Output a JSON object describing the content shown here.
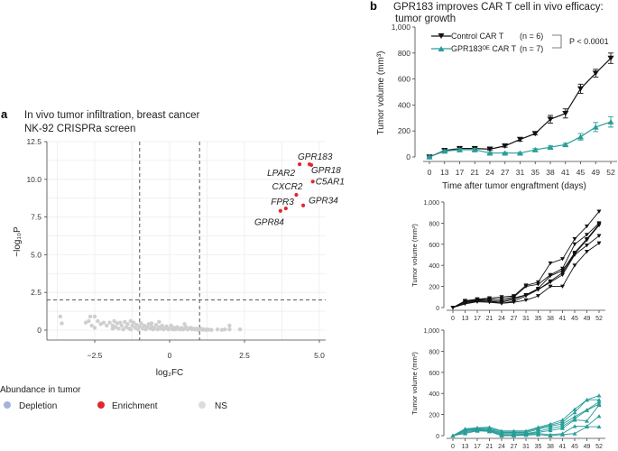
{
  "panels": {
    "a": {
      "label": "a",
      "title": "In vivo tumor infiltration, breast cancer",
      "subtitle": "NK-92 CRISPRa screen"
    },
    "b": {
      "label": "b",
      "title": "GPR183 improves CAR T cell in vivo efficacy:",
      "title2": "tumor growth"
    }
  },
  "colors": {
    "control": "#111111",
    "gpr183": "#2a9d98",
    "depletion": "#a3b3da",
    "enrichment": "#e3262c",
    "ns": "#cfcfcf"
  },
  "chart_data": [
    {
      "type": "scatter",
      "title": "",
      "xlabel": "log₂FC",
      "ylabel": "−log₁₀P",
      "xlim": [
        -4.1,
        5.2
      ],
      "ylim": [
        -0.6,
        12.5
      ],
      "xticks": [
        -2.5,
        0,
        2.5,
        5.0
      ],
      "xtick_labels": [
        "−2.5",
        "0",
        "2.5",
        "5.0"
      ],
      "yticks": [
        0,
        2.5,
        5.0,
        7.5,
        10.0,
        12.5
      ],
      "ytick_labels": [
        "0",
        "2.5",
        "5.0",
        "7.5",
        "10.0",
        "12.5"
      ],
      "grid": true,
      "thresholds": {
        "log2fc": [
          -1,
          1
        ],
        "neg_log10p": 2
      },
      "legend": {
        "title": "Abundance in tumor",
        "position": "bottom",
        "entries": [
          {
            "label": "Depletion",
            "color": "#a3b3da"
          },
          {
            "label": "Enrichment",
            "color": "#e3262c"
          },
          {
            "label": "NS",
            "color": "#cfcfcf"
          }
        ]
      },
      "enriched": [
        {
          "gene": "GPR183",
          "x": 4.67,
          "y": 11.0
        },
        {
          "gene": "GPR18",
          "x": 4.73,
          "y": 10.95
        },
        {
          "gene": "LPAR2",
          "x": 4.34,
          "y": 11.0
        },
        {
          "gene": "C5AR1",
          "x": 4.78,
          "y": 9.85
        },
        {
          "gene": "CXCR2",
          "x": 4.23,
          "y": 8.97
        },
        {
          "gene": "GPR34",
          "x": 4.46,
          "y": 8.27
        },
        {
          "gene": "FPR3",
          "x": 3.88,
          "y": 8.07
        },
        {
          "gene": "GPR84",
          "x": 3.7,
          "y": 7.91
        }
      ],
      "ns_points": [
        [
          -3.65,
          0.9
        ],
        [
          -3.6,
          0.45
        ],
        [
          -2.65,
          0.9
        ],
        [
          -2.5,
          0.9
        ],
        [
          -2.8,
          0.5
        ],
        [
          -2.7,
          0.6
        ],
        [
          -2.6,
          0.3
        ],
        [
          -2.4,
          0.6
        ],
        [
          -2.3,
          0.4
        ],
        [
          -2.2,
          0.5
        ],
        [
          -2.1,
          0.3
        ],
        [
          -2.0,
          0.5
        ],
        [
          -1.9,
          0.3
        ],
        [
          -1.85,
          0.6
        ],
        [
          -1.8,
          0.2
        ],
        [
          -1.75,
          0.45
        ],
        [
          -1.7,
          0.1
        ],
        [
          -1.65,
          0.5
        ],
        [
          -1.6,
          0.3
        ],
        [
          -1.55,
          0.05
        ],
        [
          -1.5,
          0.55
        ],
        [
          -1.45,
          0.2
        ],
        [
          -1.4,
          0.4
        ],
        [
          -1.35,
          0.1
        ],
        [
          -1.3,
          0.6
        ],
        [
          -1.25,
          0.3
        ],
        [
          -1.2,
          0.5
        ],
        [
          -1.15,
          0.15
        ],
        [
          -1.1,
          0.35
        ],
        [
          -1.05,
          0.05
        ],
        [
          -1.0,
          0.25
        ],
        [
          -0.95,
          0.45
        ],
        [
          -0.9,
          0.1
        ],
        [
          -0.85,
          0.3
        ],
        [
          -0.8,
          0.05
        ],
        [
          -0.75,
          0.2
        ],
        [
          -0.7,
          0.4
        ],
        [
          -0.65,
          0.1
        ],
        [
          -0.6,
          0.25
        ],
        [
          -0.55,
          0.05
        ],
        [
          -0.5,
          0.15
        ],
        [
          -0.45,
          0.35
        ],
        [
          -0.4,
          0.05
        ],
        [
          -0.35,
          0.2
        ],
        [
          -0.3,
          0.1
        ],
        [
          -0.25,
          0.3
        ],
        [
          -0.2,
          0.05
        ],
        [
          -0.15,
          0.15
        ],
        [
          -0.1,
          0.25
        ],
        [
          -0.05,
          0.05
        ],
        [
          0.0,
          0.1
        ],
        [
          0.05,
          0.3
        ],
        [
          0.1,
          0.05
        ],
        [
          0.15,
          0.15
        ],
        [
          0.2,
          0.05
        ],
        [
          0.25,
          0.2
        ],
        [
          0.3,
          0.1
        ],
        [
          0.35,
          0.05
        ],
        [
          0.4,
          0.15
        ],
        [
          0.45,
          0.05
        ],
        [
          0.5,
          0.1
        ],
        [
          0.55,
          0.2
        ],
        [
          0.6,
          0.05
        ],
        [
          0.65,
          0.1
        ],
        [
          0.7,
          0.15
        ],
        [
          0.75,
          0.05
        ],
        [
          0.8,
          0.1
        ],
        [
          0.85,
          0.05
        ],
        [
          0.9,
          0.1
        ],
        [
          0.95,
          0.02
        ],
        [
          1.0,
          0.05
        ],
        [
          1.05,
          0.1
        ],
        [
          1.1,
          0.03
        ],
        [
          1.15,
          0.05
        ],
        [
          1.2,
          0.02
        ],
        [
          1.25,
          0.05
        ],
        [
          1.3,
          0.03
        ],
        [
          1.4,
          0.02
        ],
        [
          1.6,
          0.05
        ],
        [
          1.75,
          0.02
        ],
        [
          1.85,
          0.05
        ],
        [
          2.0,
          0.3
        ],
        [
          2.0,
          0.05
        ],
        [
          2.35,
          0.05
        ],
        [
          -1.3,
          0.05
        ],
        [
          -0.6,
          0.45
        ],
        [
          -0.35,
          0.55
        ],
        [
          0.5,
          0.4
        ],
        [
          -1.9,
          0.1
        ],
        [
          -2.5,
          0.15
        ]
      ]
    },
    {
      "type": "line",
      "title": "",
      "xlabel": "Time after tumor engraftment (days)",
      "ylabel": "Tumor volume (mm³)",
      "categories": [
        "0",
        "13",
        "17",
        "21",
        "24",
        "27",
        "31",
        "35",
        "38",
        "41",
        "45",
        "49",
        "52"
      ],
      "ylim": [
        0,
        1000
      ],
      "yticks": [
        0,
        200,
        400,
        600,
        800,
        1000
      ],
      "ytick_labels": [
        "0",
        "200",
        "400",
        "600",
        "800",
        "1,000"
      ],
      "legend_position": "top-left",
      "series": [
        {
          "name": "Control CAR T",
          "n_label": "(n = 6)",
          "color": "#111111",
          "marker": "triangle-down",
          "values": [
            0,
            50,
            65,
            65,
            60,
            85,
            135,
            180,
            290,
            335,
            525,
            645,
            760
          ],
          "errors": [
            5,
            10,
            10,
            10,
            10,
            10,
            15,
            10,
            30,
            35,
            35,
            30,
            40
          ]
        },
        {
          "name": "GPR183ᴼᴱ CAR T",
          "n_label": "(n = 7)",
          "color": "#2a9d98",
          "marker": "triangle-up",
          "values": [
            0,
            45,
            55,
            55,
            30,
            30,
            30,
            55,
            75,
            95,
            155,
            230,
            270
          ],
          "errors": [
            5,
            10,
            10,
            10,
            5,
            5,
            5,
            10,
            10,
            10,
            25,
            35,
            40
          ]
        }
      ],
      "annotation": "P < 0.0001"
    },
    {
      "type": "line",
      "title": "",
      "ylabel": "Tumor volume (mm³)",
      "categories": [
        "0",
        "13",
        "17",
        "21",
        "24",
        "27",
        "31",
        "35",
        "38",
        "41",
        "45",
        "49",
        "52"
      ],
      "ylim": [
        0,
        1000
      ],
      "yticks": [
        0,
        200,
        400,
        600,
        800,
        1000
      ],
      "ytick_labels": [
        "0",
        "200",
        "400",
        "600",
        "800",
        "1,000"
      ],
      "color": "#111111",
      "marker": "triangle-down",
      "series": [
        {
          "values": [
            0,
            65,
            80,
            90,
            100,
            110,
            210,
            240,
            420,
            460,
            650,
            770,
            910
          ]
        },
        {
          "values": [
            0,
            60,
            75,
            80,
            80,
            100,
            200,
            220,
            310,
            370,
            600,
            690,
            800
          ]
        },
        {
          "values": [
            0,
            55,
            70,
            70,
            60,
            90,
            120,
            180,
            300,
            350,
            520,
            650,
            790
          ]
        },
        {
          "values": [
            0,
            50,
            65,
            60,
            50,
            80,
            120,
            170,
            250,
            330,
            510,
            640,
            780
          ]
        },
        {
          "values": [
            0,
            40,
            60,
            60,
            40,
            60,
            110,
            170,
            240,
            310,
            500,
            590,
            680
          ]
        },
        {
          "values": [
            0,
            35,
            55,
            50,
            40,
            50,
            70,
            110,
            200,
            200,
            400,
            530,
            610
          ]
        }
      ]
    },
    {
      "type": "line",
      "title": "",
      "ylabel": "Tumor volume (mm³)",
      "categories": [
        "0",
        "13",
        "17",
        "21",
        "24",
        "27",
        "31",
        "35",
        "38",
        "41",
        "45",
        "49",
        "52"
      ],
      "ylim": [
        0,
        1000
      ],
      "yticks": [
        0,
        200,
        400,
        600,
        800,
        1000
      ],
      "ytick_labels": [
        "0",
        "200",
        "400",
        "600",
        "800",
        "1,000"
      ],
      "color": "#2a9d98",
      "marker": "triangle-up",
      "series": [
        {
          "values": [
            0,
            65,
            75,
            80,
            45,
            45,
            45,
            80,
            110,
            150,
            250,
            340,
            380
          ]
        },
        {
          "values": [
            0,
            60,
            70,
            70,
            40,
            40,
            40,
            70,
            100,
            130,
            220,
            340,
            340
          ]
        },
        {
          "values": [
            0,
            55,
            65,
            60,
            30,
            30,
            30,
            60,
            90,
            110,
            180,
            245,
            320
          ]
        },
        {
          "values": [
            0,
            50,
            60,
            55,
            20,
            20,
            20,
            40,
            70,
            90,
            160,
            240,
            300
          ]
        },
        {
          "values": [
            0,
            40,
            55,
            50,
            10,
            10,
            15,
            30,
            50,
            70,
            150,
            140,
            290
          ]
        },
        {
          "values": [
            0,
            30,
            50,
            45,
            5,
            5,
            10,
            20,
            10,
            20,
            90,
            90,
            185
          ]
        },
        {
          "values": [
            0,
            20,
            45,
            40,
            0,
            0,
            5,
            10,
            0,
            10,
            20,
            85,
            85
          ]
        }
      ]
    }
  ]
}
